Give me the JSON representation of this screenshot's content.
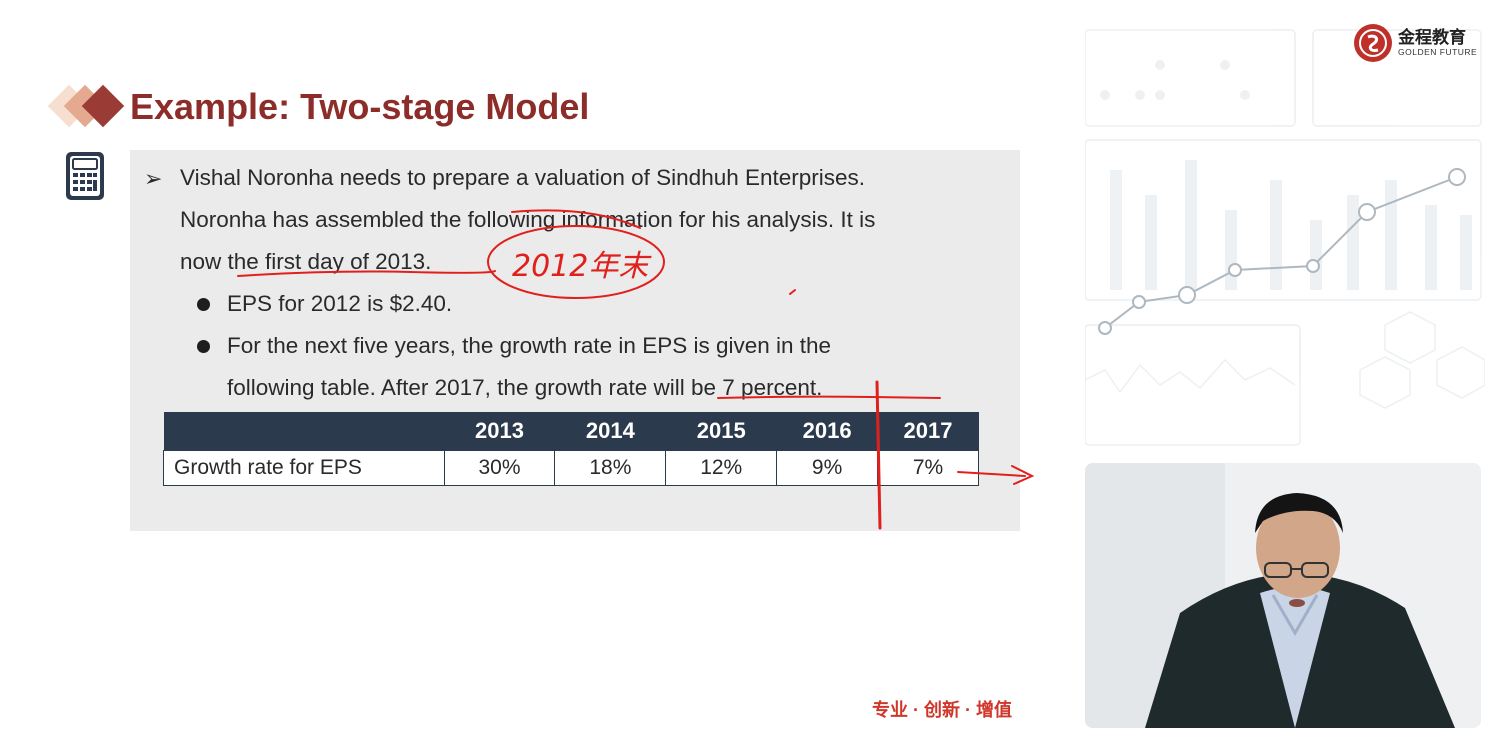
{
  "slide": {
    "title": "Example: Two-stage Model",
    "paragraph": {
      "line1": "Vishal Noronha needs to prepare a valuation of Sindhuh Enterprises.",
      "line2": "Noronha has assembled the following information for his analysis. It is",
      "line3": "now the first day of 2013."
    },
    "bullets": {
      "b1": "EPS for 2012 is $2.40.",
      "b2_line1": "For the next five years, the growth rate in EPS is given in the",
      "b2_line2": "following table. After 2017, the growth rate will be 7 percent."
    },
    "table": {
      "headers": [
        "",
        "2013",
        "2014",
        "2015",
        "2016",
        "2017"
      ],
      "row": {
        "label": "Growth rate for EPS",
        "values": [
          "30%",
          "18%",
          "12%",
          "9%",
          "7%"
        ]
      }
    },
    "handwriting": "2012年末",
    "slogan": "专业 · 创新 · 增值"
  },
  "branding": {
    "logo_cn": "金程教育",
    "logo_en": "GOLDEN FUTURE"
  },
  "colors": {
    "title": "#8c2d2a",
    "table_header": "#2c3a4d",
    "panel_bg": "#ebebeb",
    "annotation": "#e0201c",
    "slogan": "#d0362a"
  },
  "icons": [
    "calculator-icon",
    "arrow-bullet-icon",
    "logo-icon"
  ]
}
